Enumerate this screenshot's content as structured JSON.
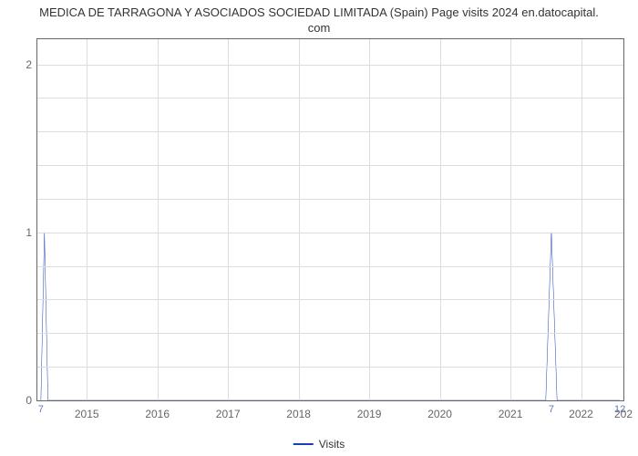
{
  "chart": {
    "type": "line",
    "title_line1": "MEDICA DE TARRAGONA Y ASOCIADOS SOCIEDAD LIMITADA (Spain) Page visits 2024 en.datocapital.",
    "title_line2": "com",
    "title_fontsize": 13,
    "background_color": "#ffffff",
    "plot_border_color": "#666666",
    "grid_color": "#dddddd",
    "line_color": "#1a3fb8",
    "line_width": 2,
    "label_color": "#666666",
    "data_label_color": "#5b7bb8",
    "axis_fontsize": 12,
    "x": {
      "min": 2014.3,
      "max": 2022.6,
      "ticks": [
        2015,
        2016,
        2017,
        2018,
        2019,
        2020,
        2021,
        2022
      ],
      "tick_labels": [
        "2015",
        "2016",
        "2017",
        "2018",
        "2019",
        "2020",
        "2021",
        "2022"
      ],
      "end_label": "202"
    },
    "y": {
      "min": 0,
      "max": 2.15,
      "ticks": [
        0,
        1,
        2
      ],
      "tick_labels": [
        "0",
        "1",
        "2"
      ],
      "minor_ticks": [
        0.2,
        0.4,
        0.6,
        0.8,
        1.2,
        1.4,
        1.6,
        1.8
      ]
    },
    "series": {
      "name": "Visits",
      "points": [
        [
          2014.35,
          0
        ],
        [
          2014.4,
          1
        ],
        [
          2014.45,
          0
        ],
        [
          2021.5,
          0
        ],
        [
          2021.58,
          1
        ],
        [
          2021.66,
          0
        ],
        [
          2022.55,
          0
        ]
      ]
    },
    "data_labels": [
      {
        "x": 2014.35,
        "text": "7"
      },
      {
        "x": 2021.58,
        "text": "7"
      },
      {
        "x": 2022.55,
        "text": "12"
      }
    ],
    "legend": {
      "label": "Visits"
    }
  }
}
